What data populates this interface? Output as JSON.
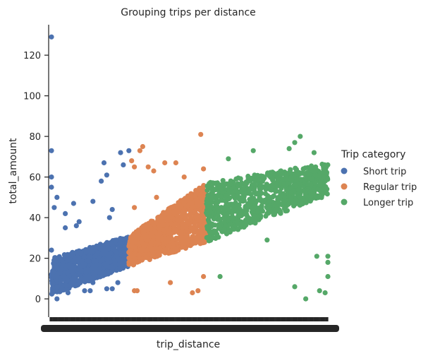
{
  "chart_data": {
    "type": "scatter",
    "title": "Grouping trips per distance",
    "xlabel": "trip_distance",
    "ylabel": "total_amount",
    "ylim": [
      -9,
      135
    ],
    "yticks": [
      0,
      20,
      40,
      60,
      80,
      100,
      120
    ],
    "grid": false,
    "legend": {
      "title": "Trip category",
      "placement": "right",
      "entries": [
        "Short trip",
        "Regular trip",
        "Longer trip"
      ]
    },
    "x_tick_labels_note": "",
    "series": [
      {
        "name": "Short trip",
        "color": "#4c72b0",
        "x_range": [
          0,
          0.28
        ],
        "band_bottom": [
          2,
          16
        ],
        "band_top": [
          20,
          31
        ],
        "outliers": [
          [
            0.0,
            129
          ],
          [
            0.0,
            73
          ],
          [
            0.0,
            55
          ],
          [
            0.0,
            60
          ],
          [
            0.01,
            45
          ],
          [
            0.02,
            50
          ],
          [
            0.05,
            42
          ],
          [
            0.05,
            35
          ],
          [
            0.08,
            47
          ],
          [
            0.09,
            36
          ],
          [
            0.1,
            38
          ],
          [
            0.15,
            48
          ],
          [
            0.18,
            58
          ],
          [
            0.19,
            67
          ],
          [
            0.2,
            61
          ],
          [
            0.21,
            40
          ],
          [
            0.22,
            44
          ],
          [
            0.25,
            72
          ],
          [
            0.26,
            66
          ],
          [
            0.24,
            8
          ],
          [
            0.22,
            5
          ],
          [
            0.2,
            5
          ],
          [
            0.14,
            4
          ],
          [
            0.12,
            4
          ],
          [
            0.06,
            3
          ],
          [
            0.0,
            12
          ],
          [
            0.0,
            24
          ],
          [
            0.02,
            0
          ],
          [
            0.15,
            8
          ],
          [
            0.28,
            73
          ]
        ]
      },
      {
        "name": "Regular trip",
        "color": "#dd8452",
        "x_range": [
          0.28,
          0.56
        ],
        "band_bottom": [
          16,
          28
        ],
        "band_top": [
          31,
          57
        ],
        "outliers": [
          [
            0.29,
            68
          ],
          [
            0.3,
            65
          ],
          [
            0.32,
            73
          ],
          [
            0.33,
            75
          ],
          [
            0.35,
            65
          ],
          [
            0.37,
            63
          ],
          [
            0.41,
            67
          ],
          [
            0.45,
            67
          ],
          [
            0.48,
            60
          ],
          [
            0.55,
            64
          ],
          [
            0.54,
            81
          ],
          [
            0.3,
            45
          ],
          [
            0.38,
            50
          ],
          [
            0.3,
            4
          ],
          [
            0.31,
            4
          ],
          [
            0.43,
            8
          ],
          [
            0.51,
            3
          ],
          [
            0.53,
            4
          ],
          [
            0.55,
            11
          ]
        ]
      },
      {
        "name": "Longer trip",
        "color": "#55a868",
        "x_range": [
          0.56,
          1.0
        ],
        "band_bottom": [
          28,
          51
        ],
        "band_top": [
          57,
          67
        ],
        "outliers": [
          [
            0.64,
            69
          ],
          [
            0.73,
            73
          ],
          [
            0.86,
            74
          ],
          [
            0.88,
            77
          ],
          [
            0.9,
            80
          ],
          [
            0.95,
            72
          ],
          [
            0.61,
            11
          ],
          [
            0.78,
            29
          ],
          [
            0.88,
            6
          ],
          [
            0.92,
            0
          ],
          [
            0.96,
            21
          ],
          [
            0.97,
            4
          ],
          [
            0.99,
            3
          ],
          [
            1.0,
            11
          ],
          [
            1.0,
            18
          ],
          [
            1.0,
            21
          ]
        ]
      }
    ]
  }
}
